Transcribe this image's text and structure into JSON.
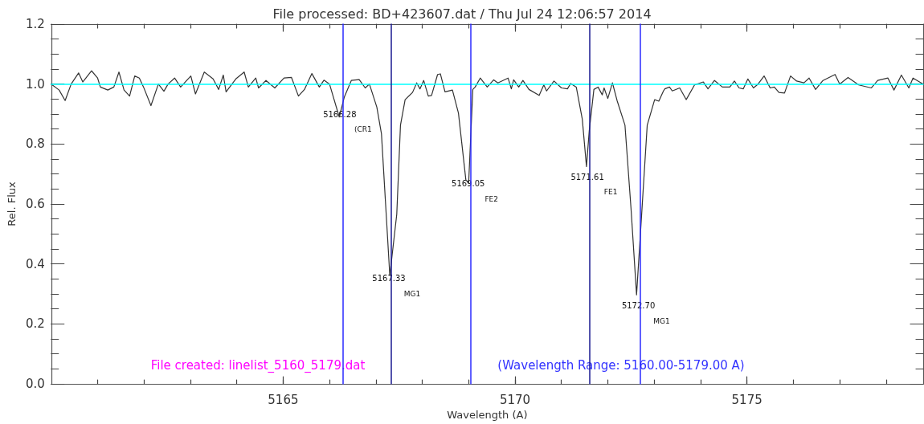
{
  "chart_data": {
    "type": "line",
    "title": "File processed: BD+423607.dat / Thu Jul 24 12:06:57 2014",
    "xlabel": "Wavelength (A)",
    "ylabel": "Rel. Flux",
    "xlim": [
      5160,
      5178.8
    ],
    "ylim": [
      0,
      1.2
    ],
    "xticks": [
      {
        "value": 5161,
        "label": null
      },
      {
        "value": 5162,
        "label": null
      },
      {
        "value": 5163,
        "label": null
      },
      {
        "value": 5164,
        "label": null
      },
      5165,
      {
        "value": 5166,
        "label": null
      },
      {
        "value": 5167,
        "label": null
      },
      {
        "value": 5168,
        "label": null
      },
      {
        "value": 5169,
        "label": null
      },
      5170,
      {
        "value": 5171,
        "label": null
      },
      {
        "value": 5172,
        "label": null
      },
      {
        "value": 5173,
        "label": null
      },
      {
        "value": 5174,
        "label": null
      },
      5175,
      {
        "value": 5176,
        "label": null
      },
      {
        "value": 5177,
        "label": null
      },
      {
        "value": 5178,
        "label": null
      }
    ],
    "yticks": [
      {
        "value": 0,
        "label": "0.0"
      },
      {
        "value": 0.05,
        "label": null
      },
      {
        "value": 0.1,
        "label": null
      },
      {
        "value": 0.15,
        "label": null
      },
      {
        "value": 0.2,
        "label": "0.2"
      },
      {
        "value": 0.25,
        "label": null
      },
      {
        "value": 0.3,
        "label": null
      },
      {
        "value": 0.35,
        "label": null
      },
      {
        "value": 0.4,
        "label": "0.4"
      },
      {
        "value": 0.45,
        "label": null
      },
      {
        "value": 0.5,
        "label": null
      },
      {
        "value": 0.55,
        "label": null
      },
      {
        "value": 0.6,
        "label": "0.6"
      },
      {
        "value": 0.65,
        "label": null
      },
      {
        "value": 0.7,
        "label": null
      },
      {
        "value": 0.75,
        "label": null
      },
      {
        "value": 0.8,
        "label": "0.8"
      },
      {
        "value": 0.85,
        "label": null
      },
      {
        "value": 0.9,
        "label": null
      },
      {
        "value": 0.95,
        "label": null
      },
      {
        "value": 1.0,
        "label": "1.0"
      },
      {
        "value": 1.05,
        "label": null
      },
      {
        "value": 1.1,
        "label": null
      },
      {
        "value": 1.15,
        "label": null
      },
      {
        "value": 1.2,
        "label": "1.2"
      }
    ],
    "series": [
      {
        "color": "#333333",
        "x": [
          5160.0,
          5160.17,
          5160.3,
          5160.43,
          5160.59,
          5160.68,
          5160.87,
          5161.0,
          5161.06,
          5161.22,
          5161.35,
          5161.46,
          5161.57,
          5161.69,
          5161.8,
          5161.9,
          5161.99,
          5162.15,
          5162.31,
          5162.43,
          5162.52,
          5162.66,
          5162.79,
          5163.01,
          5163.11,
          5163.3,
          5163.49,
          5163.61,
          5163.71,
          5163.77,
          5163.98,
          5164.16,
          5164.25,
          5164.41,
          5164.47,
          5164.63,
          5164.82,
          5165.02,
          5165.18,
          5165.33,
          5165.46,
          5165.62,
          5165.78,
          5165.88,
          5166.0,
          5166.21,
          5166.32,
          5166.47,
          5166.64,
          5166.77,
          5166.86,
          5167.02,
          5167.12,
          5167.3,
          5167.45,
          5167.53,
          5167.63,
          5167.79,
          5167.88,
          5167.95,
          5168.03,
          5168.13,
          5168.2,
          5168.33,
          5168.39,
          5168.49,
          5168.65,
          5168.78,
          5168.94,
          5169.0,
          5169.09,
          5169.14,
          5169.25,
          5169.4,
          5169.54,
          5169.63,
          5169.85,
          5169.92,
          5169.97,
          5170.08,
          5170.17,
          5170.3,
          5170.52,
          5170.62,
          5170.68,
          5170.84,
          5171.0,
          5171.13,
          5171.2,
          5171.32,
          5171.45,
          5171.54,
          5171.6,
          5171.7,
          5171.79,
          5171.88,
          5171.92,
          5172.0,
          5172.1,
          5172.2,
          5172.37,
          5172.5,
          5172.62,
          5172.73,
          5172.85,
          5173.01,
          5173.1,
          5173.2,
          5173.23,
          5173.33,
          5173.39,
          5173.55,
          5173.69,
          5173.87,
          5174.06,
          5174.16,
          5174.3,
          5174.47,
          5174.63,
          5174.73,
          5174.83,
          5174.92,
          5175.02,
          5175.14,
          5175.24,
          5175.37,
          5175.5,
          5175.59,
          5175.69,
          5175.81,
          5175.94,
          5176.07,
          5176.23,
          5176.34,
          5176.48,
          5176.64,
          5176.9,
          5177.0,
          5177.18,
          5177.41,
          5177.68,
          5177.82,
          5178.04,
          5178.17,
          5178.33,
          5178.49,
          5178.58,
          5178.8
        ],
        "values": [
          1.0,
          0.98,
          0.945,
          1.0,
          1.037,
          1.007,
          1.044,
          1.02,
          0.99,
          0.98,
          0.99,
          1.04,
          0.98,
          0.96,
          1.027,
          1.02,
          0.99,
          0.928,
          1.0,
          0.976,
          1.0,
          1.02,
          0.99,
          1.027,
          0.967,
          1.04,
          1.017,
          0.982,
          1.03,
          0.974,
          1.017,
          1.04,
          0.99,
          1.02,
          0.987,
          1.012,
          0.987,
          1.02,
          1.022,
          0.96,
          0.982,
          1.035,
          0.99,
          1.013,
          1.0,
          0.89,
          0.957,
          1.012,
          1.015,
          0.987,
          1.0,
          0.923,
          0.834,
          0.361,
          0.566,
          0.863,
          0.948,
          0.972,
          1.004,
          0.984,
          1.012,
          0.96,
          0.962,
          1.032,
          1.034,
          0.974,
          0.98,
          0.903,
          0.68,
          0.67,
          0.982,
          0.99,
          1.02,
          0.99,
          1.014,
          1.004,
          1.02,
          0.984,
          1.014,
          0.99,
          1.012,
          0.982,
          0.962,
          0.997,
          0.977,
          1.01,
          0.987,
          0.984,
          1.002,
          0.99,
          0.883,
          0.725,
          0.844,
          0.982,
          0.99,
          0.964,
          0.987,
          0.952,
          1.004,
          0.945,
          0.863,
          0.586,
          0.297,
          0.566,
          0.863,
          0.948,
          0.943,
          0.977,
          0.984,
          0.99,
          0.977,
          0.987,
          0.948,
          0.997,
          1.007,
          0.984,
          1.012,
          0.99,
          0.99,
          1.01,
          0.987,
          0.984,
          1.017,
          0.987,
          1.0,
          1.027,
          0.987,
          0.99,
          0.972,
          0.97,
          1.027,
          1.01,
          1.004,
          1.02,
          0.982,
          1.012,
          1.032,
          1.0,
          1.022,
          0.997,
          0.987,
          1.012,
          1.02,
          0.98,
          1.03,
          0.987,
          1.02,
          1.0
        ]
      }
    ],
    "ref_lines": [
      {
        "axis": "y",
        "value": 1.0,
        "color": "#00ffff"
      },
      {
        "axis": "x",
        "value": 5166.28,
        "color": "#2a2aff"
      },
      {
        "axis": "x",
        "value": 5167.33,
        "color": "#1a1a90"
      },
      {
        "axis": "x",
        "value": 5169.05,
        "color": "#2a2aff"
      },
      {
        "axis": "x",
        "value": 5171.61,
        "color": "#1a1a90"
      },
      {
        "axis": "x",
        "value": 5172.7,
        "color": "#2a2aff"
      }
    ],
    "annotations": [
      {
        "text": "5166.28",
        "x": 5166.22,
        "y": 0.9
      },
      "(CR1",
      {
        "text": "5167.33",
        "x": 5167.28,
        "y": 0.352
      },
      "MG1",
      {
        "text": "5169.05",
        "x": 5168.99,
        "y": 0.667
      },
      "FE2",
      {
        "text": "5171.61",
        "x": 5171.56,
        "y": 0.69
      },
      "FE1",
      {
        "text": "5172.70",
        "x": 5172.66,
        "y": 0.26
      },
      "MG1",
      "File created: linelist_5160_5179.dat",
      "(Wavelength Range: 5160.00-5179.00 A)"
    ]
  }
}
